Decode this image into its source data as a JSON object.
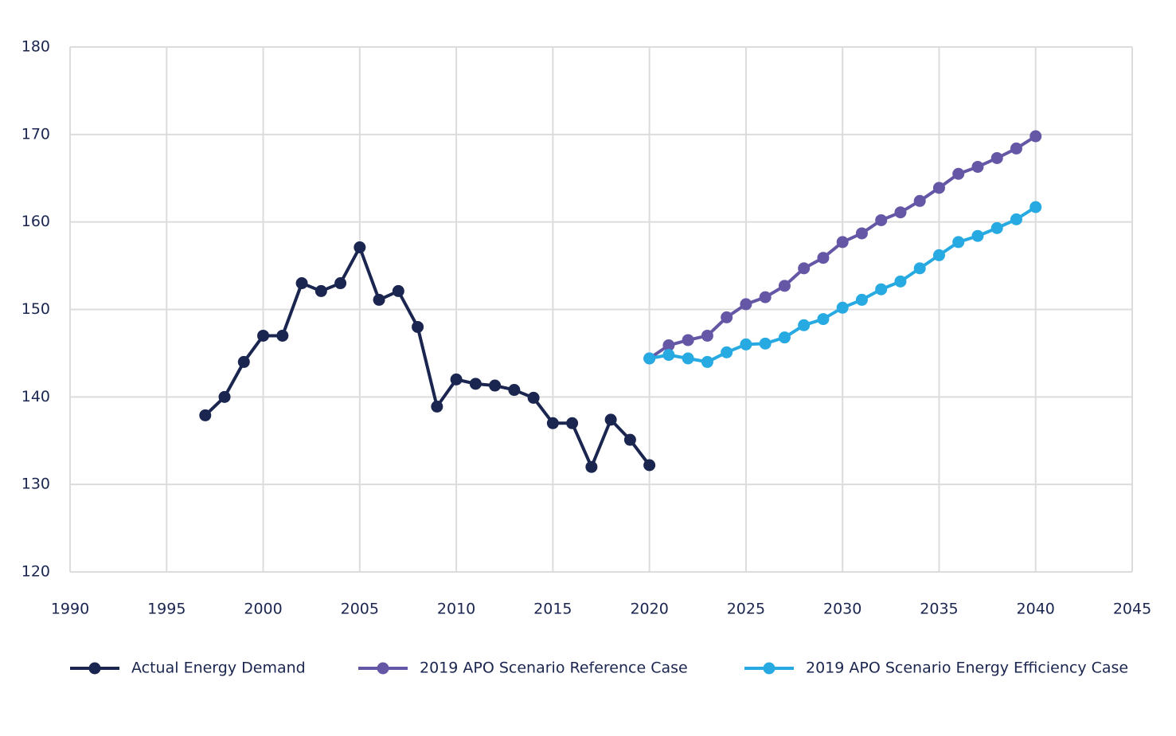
{
  "chart_data": {
    "type": "line",
    "x": [
      1997,
      1998,
      1999,
      2000,
      2001,
      2002,
      2003,
      2004,
      2005,
      2006,
      2007,
      2008,
      2009,
      2010,
      2011,
      2012,
      2013,
      2014,
      2015,
      2016,
      2017,
      2018,
      2019,
      2020,
      2021,
      2022,
      2023,
      2024,
      2025,
      2026,
      2027,
      2028,
      2029,
      2030,
      2031,
      2032,
      2033,
      2034,
      2035,
      2036,
      2037,
      2038,
      2039,
      2040
    ],
    "series": [
      {
        "name": "Actual Energy Demand",
        "color": "#1b2650",
        "values": [
          137.9,
          140.0,
          144.0,
          147.0,
          147.0,
          153.0,
          152.1,
          153.0,
          157.1,
          151.1,
          152.1,
          148.0,
          138.9,
          142.0,
          141.5,
          141.3,
          140.8,
          139.9,
          137.0,
          137.0,
          132.0,
          137.4,
          135.1,
          132.2,
          null,
          null,
          null,
          null,
          null,
          null,
          null,
          null,
          null,
          null,
          null,
          null,
          null,
          null,
          null,
          null,
          null,
          null,
          null,
          null
        ]
      },
      {
        "name": "2019 APO Scenario Reference Case",
        "color": "#6557a6",
        "values": [
          null,
          null,
          null,
          null,
          null,
          null,
          null,
          null,
          null,
          null,
          null,
          null,
          null,
          null,
          null,
          null,
          null,
          null,
          null,
          null,
          null,
          null,
          null,
          144.4,
          145.9,
          146.5,
          147.0,
          149.1,
          150.6,
          151.4,
          152.7,
          154.7,
          155.9,
          157.7,
          158.7,
          160.2,
          161.1,
          162.4,
          163.9,
          165.5,
          166.3,
          167.3,
          168.4,
          169.8
        ]
      },
      {
        "name": "2019 APO Scenario Energy Efficiency Case",
        "color": "#27aae1",
        "values": [
          null,
          null,
          null,
          null,
          null,
          null,
          null,
          null,
          null,
          null,
          null,
          null,
          null,
          null,
          null,
          null,
          null,
          null,
          null,
          null,
          null,
          null,
          null,
          144.4,
          144.8,
          144.4,
          144.0,
          145.1,
          146.0,
          146.1,
          146.8,
          148.2,
          148.9,
          150.2,
          151.1,
          152.3,
          153.2,
          154.7,
          156.2,
          157.7,
          158.4,
          159.3,
          160.3,
          161.7
        ]
      }
    ],
    "xlim": [
      1990,
      2045
    ],
    "xticks": [
      1990,
      1995,
      2000,
      2005,
      2010,
      2015,
      2020,
      2025,
      2030,
      2035,
      2040,
      2045
    ],
    "ylim": [
      120,
      180
    ],
    "yticks": [
      120,
      130,
      140,
      150,
      160,
      170,
      180
    ],
    "grid": true,
    "legend": "bottom"
  }
}
